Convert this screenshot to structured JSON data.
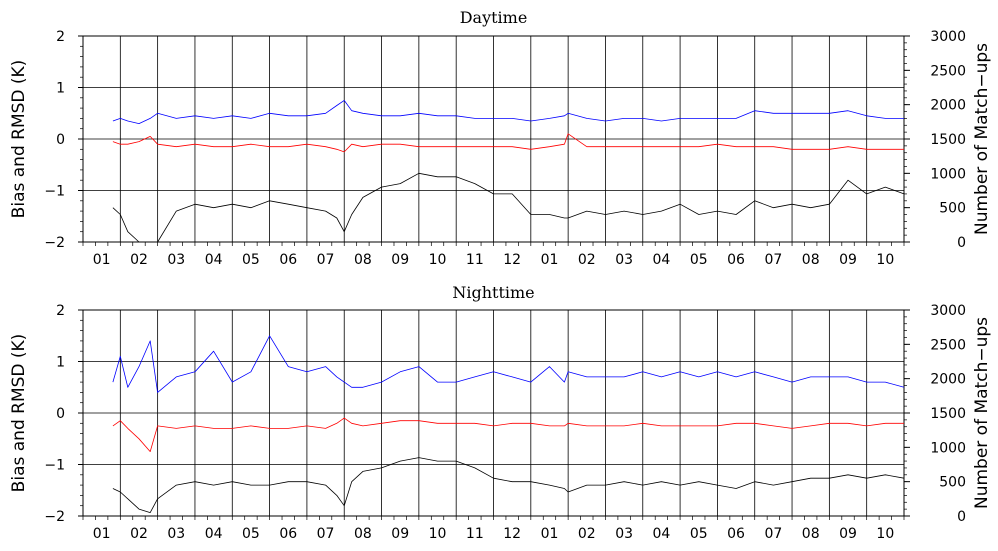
{
  "chart_data": [
    {
      "type": "line",
      "title": "Daytime",
      "ylabel": "Bias and RMSD (K)",
      "y2label": "Number of Match−ups",
      "ylim": [
        -2,
        2
      ],
      "y2lim": [
        0,
        3000
      ],
      "yticks": [
        "2",
        "1",
        "0",
        "−1",
        "−2"
      ],
      "y2ticks": [
        "3000",
        "2500",
        "2000",
        "1500",
        "1000",
        "500",
        "0"
      ],
      "xlim": [
        0,
        22
      ],
      "xtick_labels": [
        "01",
        "02",
        "03",
        "04",
        "05",
        "06",
        "07",
        "08",
        "09",
        "10",
        "11",
        "12",
        "01",
        "02",
        "03",
        "04",
        "05",
        "06",
        "07",
        "08",
        "09",
        "10"
      ],
      "grid": true,
      "series": [
        {
          "color": "#0000ff",
          "axis": "left",
          "x": [
            0.8,
            1.0,
            1.2,
            1.5,
            1.8,
            2.0,
            2.5,
            3.0,
            3.5,
            4.0,
            4.5,
            5.0,
            5.5,
            6.0,
            6.5,
            6.8,
            7.0,
            7.2,
            7.5,
            8.0,
            8.5,
            9.0,
            9.5,
            10.0,
            10.5,
            11.0,
            11.5,
            12.0,
            12.5,
            12.9,
            13.0,
            13.5,
            14.0,
            14.5,
            15.0,
            15.5,
            16.0,
            16.5,
            17.0,
            17.5,
            18.0,
            18.5,
            19.0,
            19.5,
            20.0,
            20.5,
            21.0,
            21.5,
            22.0
          ],
          "values": [
            0.35,
            0.4,
            0.35,
            0.3,
            0.4,
            0.5,
            0.4,
            0.45,
            0.4,
            0.45,
            0.4,
            0.5,
            0.45,
            0.45,
            0.5,
            0.65,
            0.75,
            0.55,
            0.5,
            0.45,
            0.45,
            0.5,
            0.45,
            0.45,
            0.4,
            0.4,
            0.4,
            0.35,
            0.4,
            0.45,
            0.5,
            0.4,
            0.35,
            0.4,
            0.4,
            0.35,
            0.4,
            0.4,
            0.4,
            0.4,
            0.55,
            0.5,
            0.5,
            0.5,
            0.5,
            0.55,
            0.45,
            0.4,
            0.4
          ]
        },
        {
          "color": "#ff0000",
          "axis": "left",
          "x": [
            0.8,
            1.0,
            1.2,
            1.5,
            1.8,
            2.0,
            2.5,
            3.0,
            3.5,
            4.0,
            4.5,
            5.0,
            5.5,
            6.0,
            6.5,
            6.8,
            7.0,
            7.2,
            7.5,
            8.0,
            8.5,
            9.0,
            9.5,
            10.0,
            10.5,
            11.0,
            11.5,
            12.0,
            12.5,
            12.9,
            13.0,
            13.5,
            14.0,
            14.5,
            15.0,
            15.5,
            16.0,
            16.5,
            17.0,
            17.5,
            18.0,
            18.5,
            19.0,
            19.5,
            20.0,
            20.5,
            21.0,
            21.5,
            22.0
          ],
          "values": [
            -0.05,
            -0.1,
            -0.1,
            -0.05,
            0.05,
            -0.1,
            -0.15,
            -0.1,
            -0.15,
            -0.15,
            -0.1,
            -0.15,
            -0.15,
            -0.1,
            -0.15,
            -0.2,
            -0.25,
            -0.1,
            -0.15,
            -0.1,
            -0.1,
            -0.15,
            -0.15,
            -0.15,
            -0.15,
            -0.15,
            -0.15,
            -0.2,
            -0.15,
            -0.1,
            0.1,
            -0.15,
            -0.15,
            -0.15,
            -0.15,
            -0.15,
            -0.15,
            -0.15,
            -0.1,
            -0.15,
            -0.15,
            -0.15,
            -0.2,
            -0.2,
            -0.2,
            -0.15,
            -0.2,
            -0.2,
            -0.2
          ]
        },
        {
          "color": "#000000",
          "axis": "right",
          "x": [
            0.8,
            1.0,
            1.2,
            1.5,
            1.8,
            2.0,
            2.5,
            3.0,
            3.5,
            4.0,
            4.5,
            5.0,
            5.5,
            6.0,
            6.5,
            6.8,
            7.0,
            7.2,
            7.5,
            8.0,
            8.5,
            9.0,
            9.5,
            10.0,
            10.5,
            11.0,
            11.5,
            12.0,
            12.5,
            12.9,
            13.0,
            13.5,
            14.0,
            14.5,
            15.0,
            15.5,
            16.0,
            16.5,
            17.0,
            17.5,
            18.0,
            18.5,
            19.0,
            19.5,
            20.0,
            20.5,
            21.0,
            21.5,
            22.0
          ],
          "values": [
            500,
            400,
            150,
            0,
            0,
            0,
            450,
            550,
            500,
            550,
            500,
            600,
            550,
            500,
            450,
            350,
            150,
            400,
            650,
            800,
            850,
            1000,
            950,
            950,
            850,
            700,
            700,
            400,
            400,
            350,
            350,
            450,
            400,
            450,
            400,
            450,
            550,
            400,
            450,
            400,
            600,
            500,
            550,
            500,
            550,
            900,
            700,
            800,
            700
          ]
        }
      ]
    },
    {
      "type": "line",
      "title": "Nighttime",
      "ylabel": "Bias and RMSD (K)",
      "y2label": "Number of Match−ups",
      "ylim": [
        -2,
        2
      ],
      "y2lim": [
        0,
        3000
      ],
      "yticks": [
        "2",
        "1",
        "0",
        "−1",
        "−2"
      ],
      "y2ticks": [
        "3000",
        "2500",
        "2000",
        "1500",
        "1000",
        "500",
        "0"
      ],
      "xlim": [
        0,
        22
      ],
      "xtick_labels": [
        "01",
        "02",
        "03",
        "04",
        "05",
        "06",
        "07",
        "08",
        "09",
        "10",
        "11",
        "12",
        "01",
        "02",
        "03",
        "04",
        "05",
        "06",
        "07",
        "08",
        "09",
        "10"
      ],
      "grid": true,
      "series": [
        {
          "color": "#0000ff",
          "axis": "left",
          "x": [
            0.8,
            1.0,
            1.2,
            1.5,
            1.8,
            2.0,
            2.5,
            3.0,
            3.5,
            4.0,
            4.5,
            5.0,
            5.5,
            6.0,
            6.5,
            6.8,
            7.0,
            7.2,
            7.5,
            8.0,
            8.5,
            9.0,
            9.5,
            10.0,
            10.5,
            11.0,
            11.5,
            12.0,
            12.5,
            12.9,
            13.0,
            13.5,
            14.0,
            14.5,
            15.0,
            15.5,
            16.0,
            16.5,
            17.0,
            17.5,
            18.0,
            18.5,
            19.0,
            19.5,
            20.0,
            20.5,
            21.0,
            21.5,
            22.0
          ],
          "values": [
            0.6,
            1.1,
            0.5,
            0.9,
            1.4,
            0.4,
            0.7,
            0.8,
            1.2,
            0.6,
            0.8,
            1.5,
            0.9,
            0.8,
            0.9,
            0.7,
            0.6,
            0.5,
            0.5,
            0.6,
            0.8,
            0.9,
            0.6,
            0.6,
            0.7,
            0.8,
            0.7,
            0.6,
            0.9,
            0.6,
            0.8,
            0.7,
            0.7,
            0.7,
            0.8,
            0.7,
            0.8,
            0.7,
            0.8,
            0.7,
            0.8,
            0.7,
            0.6,
            0.7,
            0.7,
            0.7,
            0.6,
            0.6,
            0.5
          ]
        },
        {
          "color": "#ff0000",
          "axis": "left",
          "x": [
            0.8,
            1.0,
            1.2,
            1.5,
            1.8,
            2.0,
            2.5,
            3.0,
            3.5,
            4.0,
            4.5,
            5.0,
            5.5,
            6.0,
            6.5,
            6.8,
            7.0,
            7.2,
            7.5,
            8.0,
            8.5,
            9.0,
            9.5,
            10.0,
            10.5,
            11.0,
            11.5,
            12.0,
            12.5,
            12.9,
            13.0,
            13.5,
            14.0,
            14.5,
            15.0,
            15.5,
            16.0,
            16.5,
            17.0,
            17.5,
            18.0,
            18.5,
            19.0,
            19.5,
            20.0,
            20.5,
            21.0,
            21.5,
            22.0
          ],
          "values": [
            -0.25,
            -0.15,
            -0.3,
            -0.5,
            -0.75,
            -0.25,
            -0.3,
            -0.25,
            -0.3,
            -0.3,
            -0.25,
            -0.3,
            -0.3,
            -0.25,
            -0.3,
            -0.2,
            -0.1,
            -0.2,
            -0.25,
            -0.2,
            -0.15,
            -0.15,
            -0.2,
            -0.2,
            -0.2,
            -0.25,
            -0.2,
            -0.2,
            -0.25,
            -0.25,
            -0.2,
            -0.25,
            -0.25,
            -0.25,
            -0.2,
            -0.25,
            -0.25,
            -0.25,
            -0.25,
            -0.2,
            -0.2,
            -0.25,
            -0.3,
            -0.25,
            -0.2,
            -0.2,
            -0.25,
            -0.2,
            -0.2
          ]
        },
        {
          "color": "#000000",
          "axis": "right",
          "x": [
            0.8,
            1.0,
            1.2,
            1.5,
            1.8,
            2.0,
            2.5,
            3.0,
            3.5,
            4.0,
            4.5,
            5.0,
            5.5,
            6.0,
            6.5,
            6.8,
            7.0,
            7.2,
            7.5,
            8.0,
            8.5,
            9.0,
            9.5,
            10.0,
            10.5,
            11.0,
            11.5,
            12.0,
            12.5,
            12.9,
            13.0,
            13.5,
            14.0,
            14.5,
            15.0,
            15.5,
            16.0,
            16.5,
            17.0,
            17.5,
            18.0,
            18.5,
            19.0,
            19.5,
            20.0,
            20.5,
            21.0,
            21.5,
            22.0
          ],
          "values": [
            400,
            350,
            250,
            100,
            50,
            250,
            450,
            500,
            450,
            500,
            450,
            450,
            500,
            500,
            450,
            300,
            150,
            500,
            650,
            700,
            800,
            850,
            800,
            800,
            700,
            550,
            500,
            500,
            450,
            400,
            350,
            450,
            450,
            500,
            450,
            500,
            450,
            500,
            450,
            400,
            500,
            450,
            500,
            550,
            550,
            600,
            550,
            600,
            550
          ]
        }
      ]
    }
  ]
}
